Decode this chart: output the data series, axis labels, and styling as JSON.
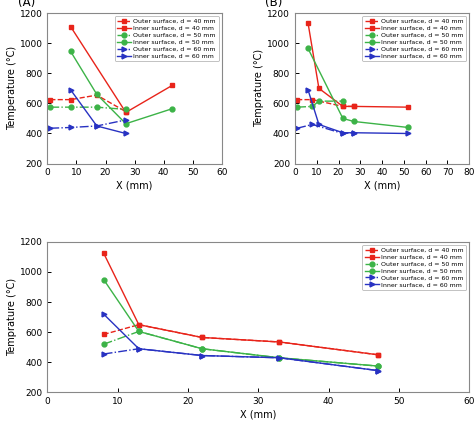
{
  "A": {
    "outer_40": {
      "x": [
        1,
        8,
        17,
        27
      ],
      "y": [
        625,
        625,
        655,
        545
      ]
    },
    "inner_40": {
      "x": [
        8,
        27,
        43
      ],
      "y": [
        1110,
        540,
        720
      ]
    },
    "outer_50": {
      "x": [
        1,
        8,
        17,
        27
      ],
      "y": [
        575,
        575,
        575,
        560
      ]
    },
    "inner_50": {
      "x": [
        8,
        17,
        27,
        43
      ],
      "y": [
        945,
        660,
        465,
        565
      ]
    },
    "outer_60": {
      "x": [
        1,
        8,
        17,
        27
      ],
      "y": [
        435,
        440,
        450,
        490
      ]
    },
    "inner_60": {
      "x": [
        8,
        17,
        27
      ],
      "y": [
        690,
        450,
        400
      ]
    }
  },
  "B": {
    "outer_40": {
      "x": [
        1,
        8,
        22,
        27
      ],
      "y": [
        625,
        625,
        580,
        580
      ]
    },
    "inner_40": {
      "x": [
        6,
        11,
        22,
        27,
        52
      ],
      "y": [
        1135,
        700,
        580,
        580,
        575
      ]
    },
    "outer_50": {
      "x": [
        1,
        8,
        11,
        22
      ],
      "y": [
        575,
        580,
        615,
        615
      ]
    },
    "inner_50": {
      "x": [
        6,
        22,
        27,
        52
      ],
      "y": [
        965,
        500,
        480,
        440
      ]
    },
    "outer_60": {
      "x": [
        1,
        8,
        22,
        27
      ],
      "y": [
        435,
        460,
        400,
        405
      ]
    },
    "inner_60": {
      "x": [
        6,
        11,
        22,
        27,
        52
      ],
      "y": [
        690,
        460,
        405,
        405,
        400
      ]
    }
  },
  "C": {
    "outer_40": {
      "x": [
        8,
        13,
        22,
        33,
        47
      ],
      "y": [
        585,
        650,
        565,
        535,
        450
      ]
    },
    "inner_40": {
      "x": [
        8,
        13,
        22,
        33,
        47
      ],
      "y": [
        1125,
        650,
        565,
        535,
        450
      ]
    },
    "outer_50": {
      "x": [
        8,
        13,
        22,
        33,
        47
      ],
      "y": [
        520,
        605,
        490,
        430,
        375
      ]
    },
    "inner_50": {
      "x": [
        8,
        13,
        22,
        33,
        47
      ],
      "y": [
        950,
        605,
        490,
        430,
        375
      ]
    },
    "outer_60": {
      "x": [
        8,
        13,
        22,
        33,
        47
      ],
      "y": [
        455,
        490,
        445,
        430,
        345
      ]
    },
    "inner_60": {
      "x": [
        8,
        13,
        22,
        33,
        47
      ],
      "y": [
        720,
        490,
        445,
        430,
        345
      ]
    }
  },
  "colors": {
    "red": "#e8241a",
    "green": "#3cb347",
    "blue": "#2832c2"
  },
  "xlim_A": [
    0,
    60
  ],
  "xlim_B": [
    0,
    80
  ],
  "xlim_C": [
    0,
    60
  ],
  "ylim": [
    200,
    1200
  ],
  "yticks": [
    200,
    400,
    600,
    800,
    1000,
    1200
  ],
  "xticks_A": [
    0,
    10,
    20,
    30,
    40,
    50,
    60
  ],
  "xticks_B": [
    0,
    10,
    20,
    30,
    40,
    50,
    60,
    70,
    80
  ],
  "xticks_C": [
    0,
    10,
    20,
    30,
    40,
    50,
    60
  ]
}
